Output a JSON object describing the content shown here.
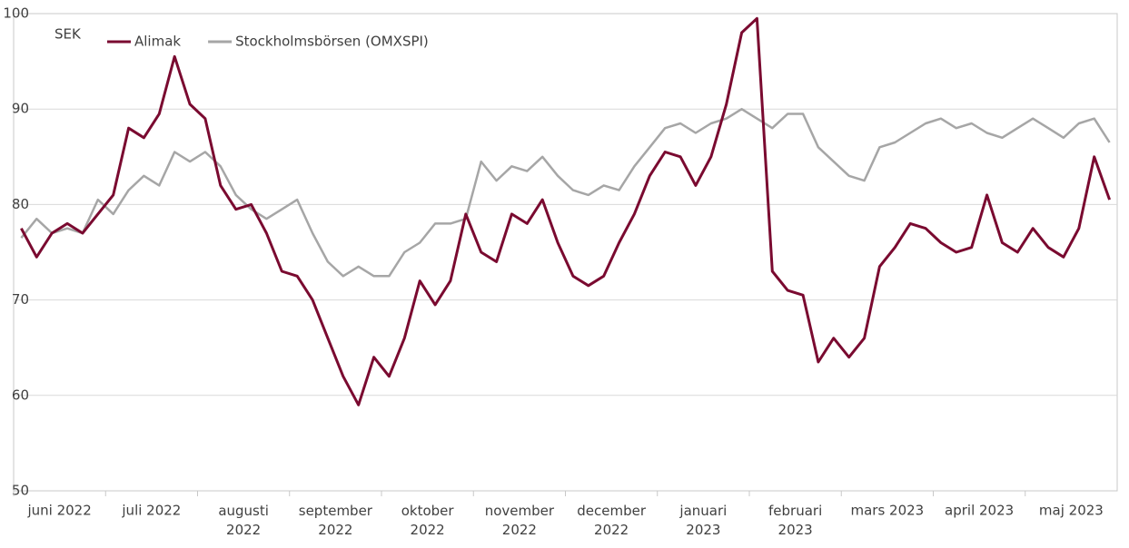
{
  "chart_data": {
    "type": "line",
    "y_unit": "SEK",
    "categories": [
      "juni 2022",
      null,
      null,
      null,
      null,
      null,
      "juli 2022",
      null,
      null,
      null,
      null,
      null,
      "augusti 2022",
      null,
      null,
      null,
      null,
      null,
      "september 2022",
      null,
      null,
      null,
      null,
      null,
      "oktober 2022",
      null,
      null,
      null,
      null,
      null,
      "november 2022",
      null,
      null,
      null,
      null,
      null,
      "december 2022",
      null,
      null,
      null,
      null,
      null,
      "januari 2023",
      null,
      null,
      null,
      null,
      null,
      "februari 2023",
      null,
      null,
      null,
      null,
      null,
      "mars 2023",
      null,
      null,
      null,
      null,
      null,
      "april 2023",
      null,
      null,
      null,
      null,
      null,
      "maj 2023",
      null,
      null,
      null,
      null,
      null
    ],
    "series": [
      {
        "name": "Alimak",
        "color": "#7a0a30",
        "values": [
          77.5,
          74.5,
          77,
          78,
          77,
          79,
          81,
          88,
          87,
          89.5,
          95.5,
          90.5,
          89,
          82,
          79.5,
          80,
          77,
          73,
          72.5,
          70,
          66,
          62,
          59,
          64,
          62,
          66,
          72,
          69.5,
          72,
          79,
          75,
          74,
          79,
          78,
          80.5,
          76,
          72.5,
          71.5,
          72.5,
          76,
          79,
          83,
          85.5,
          85,
          82,
          85,
          90.5,
          98,
          99.5,
          73,
          71,
          70.5,
          63.5,
          66,
          64,
          66,
          73.5,
          75.5,
          78,
          77.5,
          76,
          75,
          75.5,
          81,
          76,
          75,
          77.5,
          75.5,
          74.5,
          77.5,
          85,
          80.5
        ]
      },
      {
        "name": "Stockholmsbörsen (OMXSPI)",
        "color": "#a6a6a6",
        "values": [
          76.5,
          78.5,
          77,
          77.5,
          77,
          80.5,
          79,
          81.5,
          83,
          82,
          85.5,
          84.5,
          85.5,
          84,
          81,
          79.5,
          78.5,
          79.5,
          80.5,
          77,
          74,
          72.5,
          73.5,
          72.5,
          72.5,
          75,
          76,
          78,
          78,
          78.5,
          84.5,
          82.5,
          84,
          83.5,
          85,
          83,
          81.5,
          81,
          82,
          81.5,
          84,
          86,
          88,
          88.5,
          87.5,
          88.5,
          89,
          90,
          89,
          88,
          89.5,
          89.5,
          86,
          84.5,
          83,
          82.5,
          86,
          86.5,
          87.5,
          88.5,
          89,
          88,
          88.5,
          87.5,
          87,
          88,
          89,
          88,
          87,
          88.5,
          89,
          86.5
        ]
      }
    ],
    "ylim": [
      50,
      100
    ],
    "yticks": [
      50,
      60,
      70,
      80,
      90,
      100
    ],
    "grid": true,
    "legend": "top-left"
  }
}
